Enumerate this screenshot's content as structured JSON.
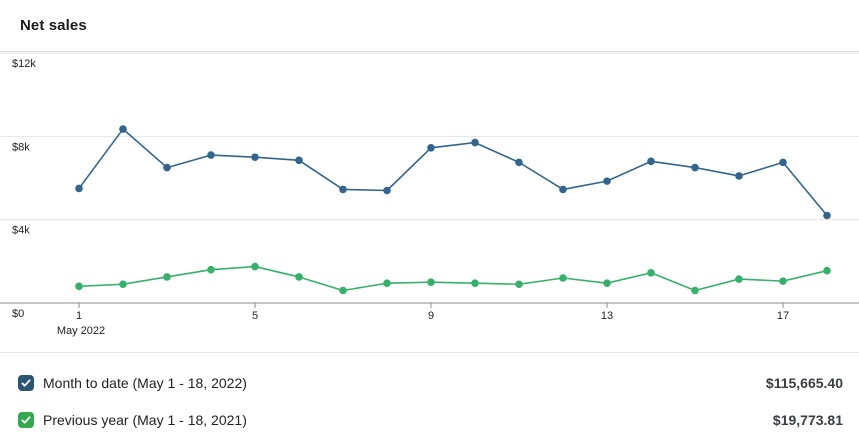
{
  "header": {
    "title": "Net sales"
  },
  "chart_data": {
    "type": "line",
    "title": "Net sales",
    "x": [
      1,
      2,
      3,
      4,
      5,
      6,
      7,
      8,
      9,
      10,
      11,
      12,
      13,
      14,
      15,
      16,
      17,
      18
    ],
    "x_axis_tick_days": [
      1,
      5,
      9,
      13,
      17
    ],
    "x_axis_tick_labels": [
      "1",
      "5",
      "9",
      "13",
      "17"
    ],
    "x_axis_sub_label": "May 2022",
    "ylim": [
      0,
      12000
    ],
    "y_ticks": [
      {
        "value": 0,
        "label": "$0"
      },
      {
        "value": 4000,
        "label": "$4k"
      },
      {
        "value": 8000,
        "label": "$8k"
      },
      {
        "value": 12000,
        "label": "$12k"
      }
    ],
    "grid": "horizontal",
    "legend_position": "bottom",
    "series": [
      {
        "name": "Month to date (May 1 - 18, 2022)",
        "color": "#33658c",
        "values": [
          5500,
          8350,
          6500,
          7100,
          7000,
          6850,
          5450,
          5400,
          7450,
          7700,
          6750,
          5450,
          5850,
          6800,
          6500,
          6100,
          6750,
          4200
        ]
      },
      {
        "name": "Previous year (May 1 - 18, 2021)",
        "color": "#36b06a",
        "values": [
          800,
          900,
          1250,
          1600,
          1750,
          1250,
          600,
          950,
          1000,
          950,
          900,
          1200,
          950,
          1450,
          600,
          1150,
          1050,
          1550
        ]
      }
    ]
  },
  "legend": {
    "items": [
      {
        "label": "Month to date (May 1 - 18, 2022)",
        "amount": "$115,665.40",
        "checked": true,
        "checkbox_color": "#2a5674"
      },
      {
        "label": "Previous year (May 1 - 18, 2021)",
        "amount": "$19,773.81",
        "checked": true,
        "checkbox_color": "#36a852"
      }
    ]
  },
  "colors": {
    "grid_line": "#e4e5e7",
    "axis_line": "#8a8f94",
    "tick_label": "#202223"
  }
}
